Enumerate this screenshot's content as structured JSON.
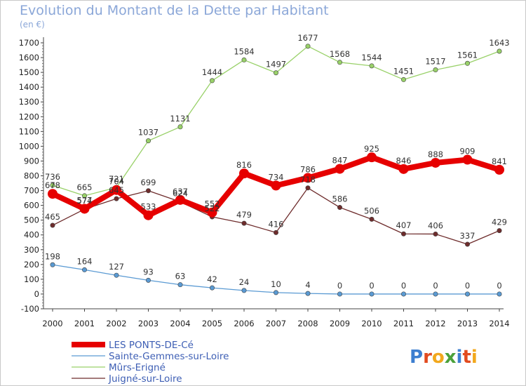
{
  "title": "Evolution du Montant de la Dette par Habitant",
  "subtitle": "(en €)",
  "brand": "Proxiti",
  "chart_data": {
    "type": "line",
    "title": "Evolution du Montant de la Dette par Habitant",
    "subtitle": "(en €)",
    "xlabel": "",
    "ylabel": "",
    "x": [
      2000,
      2001,
      2002,
      2003,
      2004,
      2005,
      2006,
      2007,
      2008,
      2009,
      2010,
      2011,
      2012,
      2013,
      2014
    ],
    "y_ticks": [
      -100,
      0,
      100,
      200,
      300,
      400,
      500,
      600,
      700,
      800,
      900,
      1000,
      1100,
      1200,
      1300,
      1400,
      1500,
      1600,
      1700
    ],
    "ylim": [
      -100,
      1700
    ],
    "grid": false,
    "legend_position": "bottom-left",
    "series": [
      {
        "name": "LES PONTS-DE-Cé",
        "color": "#e60000",
        "values": [
          678,
          577,
          704,
          533,
          637,
          552,
          816,
          734,
          786,
          847,
          925,
          846,
          888,
          909,
          841
        ]
      },
      {
        "name": "Sainte-Gemmes-sur-Loire",
        "color": "#5a9ad3",
        "values": [
          198,
          164,
          127,
          93,
          63,
          42,
          24,
          10,
          4,
          0,
          0,
          0,
          0,
          0,
          0
        ]
      },
      {
        "name": "Mûrs-Erigné",
        "color": "#99d169",
        "values": [
          736,
          665,
          721,
          1037,
          1131,
          1444,
          1584,
          1497,
          1677,
          1568,
          1544,
          1451,
          1517,
          1561,
          1643
        ]
      },
      {
        "name": "Juigné-sur-Loire",
        "color": "#6e2c2c",
        "values": [
          465,
          574,
          645,
          699,
          624,
          522,
          479,
          416,
          718,
          586,
          506,
          407,
          406,
          337,
          429
        ]
      }
    ]
  }
}
